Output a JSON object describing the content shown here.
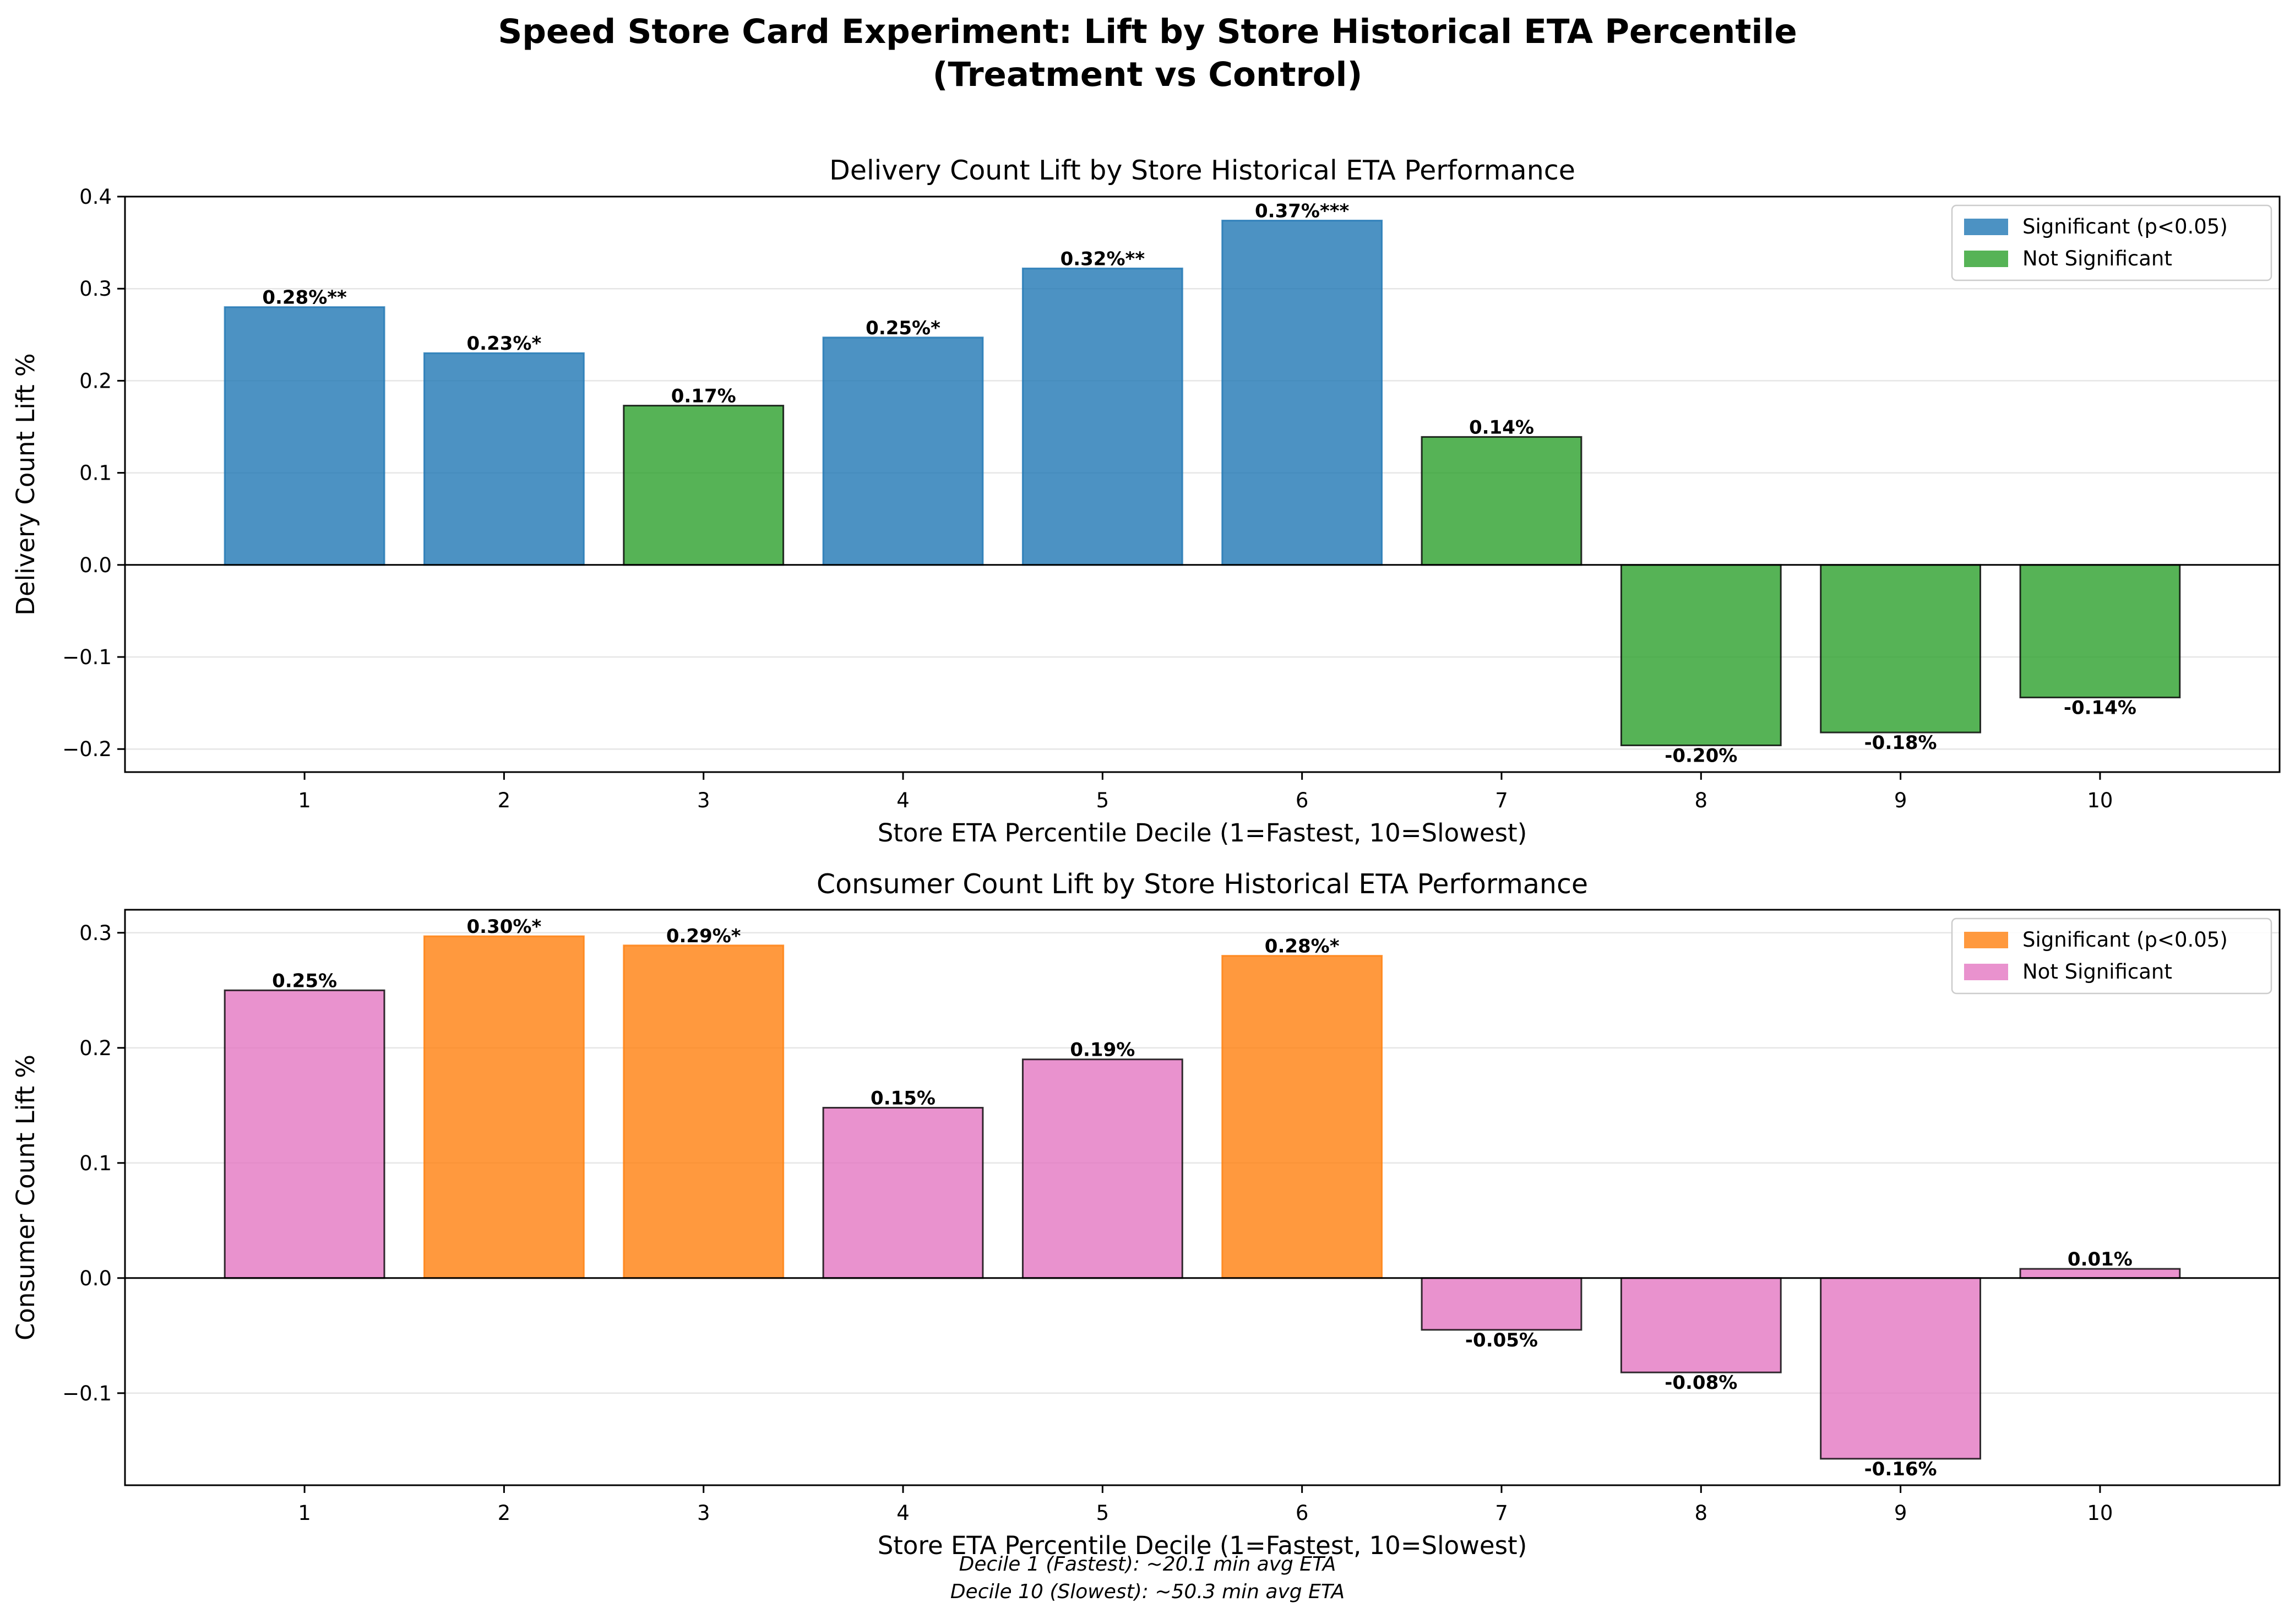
{
  "title_line1": "Speed Store Card Experiment: Lift by Store Historical ETA Percentile",
  "title_line2": "(Treatment vs Control)",
  "footnote_line1": "Decile 1 (Fastest): ~20.1 min avg ETA",
  "footnote_line2": "Decile 10 (Slowest): ~50.3 min avg ETA",
  "chart_data": [
    {
      "type": "bar",
      "title": "Delivery Count Lift by Store Historical ETA Performance",
      "xlabel": "Store ETA Percentile Decile (1=Fastest, 10=Slowest)",
      "ylabel": "Delivery Count Lift %",
      "categories": [
        "1",
        "2",
        "3",
        "4",
        "5",
        "6",
        "7",
        "8",
        "9",
        "10"
      ],
      "values": [
        0.28,
        0.23,
        0.173,
        0.247,
        0.322,
        0.374,
        0.139,
        -0.196,
        -0.182,
        -0.144
      ],
      "significant": [
        true,
        true,
        false,
        true,
        true,
        true,
        false,
        false,
        false,
        false
      ],
      "data_labels": [
        "0.28%**",
        "0.23%*",
        "0.17%",
        "0.25%*",
        "0.32%**",
        "0.37%***",
        "0.14%",
        "-0.20%",
        "-0.18%",
        "-0.14%"
      ],
      "ylim": [
        -0.225,
        0.4
      ],
      "yticks": [
        -0.2,
        -0.1,
        0.0,
        0.1,
        0.2,
        0.3,
        0.4
      ],
      "ytick_labels": [
        "−0.2",
        "−0.1",
        "0.0",
        "0.1",
        "0.2",
        "0.3",
        "0.4"
      ],
      "grid": "y",
      "legend_position": "top-right",
      "legend": [
        "Significant (p<0.05)",
        "Not Significant"
      ],
      "colors": {
        "significant": "#1f77b4",
        "not_significant": "#2ca02c",
        "sig_edge": "#1f77b4",
        "nonsig_edge": "#000000"
      }
    },
    {
      "type": "bar",
      "title": "Consumer Count Lift by Store Historical ETA Performance",
      "xlabel": "Store ETA Percentile Decile (1=Fastest, 10=Slowest)",
      "ylabel": "Consumer Count Lift %",
      "categories": [
        "1",
        "2",
        "3",
        "4",
        "5",
        "6",
        "7",
        "8",
        "9",
        "10"
      ],
      "values": [
        0.25,
        0.297,
        0.289,
        0.148,
        0.19,
        0.28,
        -0.045,
        -0.082,
        -0.157,
        0.008
      ],
      "significant": [
        false,
        true,
        true,
        false,
        false,
        true,
        false,
        false,
        false,
        false
      ],
      "data_labels": [
        "0.25%",
        "0.30%*",
        "0.29%*",
        "0.15%",
        "0.19%",
        "0.28%*",
        "-0.05%",
        "-0.08%",
        "-0.16%",
        "0.01%"
      ],
      "ylim": [
        -0.18,
        0.32
      ],
      "yticks": [
        -0.1,
        0.0,
        0.1,
        0.2,
        0.3
      ],
      "ytick_labels": [
        "−0.1",
        "0.0",
        "0.1",
        "0.2",
        "0.3"
      ],
      "grid": "y",
      "legend_position": "top-right",
      "legend": [
        "Significant (p<0.05)",
        "Not Significant"
      ],
      "colors": {
        "significant": "#ff7f0e",
        "not_significant": "#e377c2",
        "sig_edge": "#ff7f0e",
        "nonsig_edge": "#000000"
      }
    }
  ]
}
